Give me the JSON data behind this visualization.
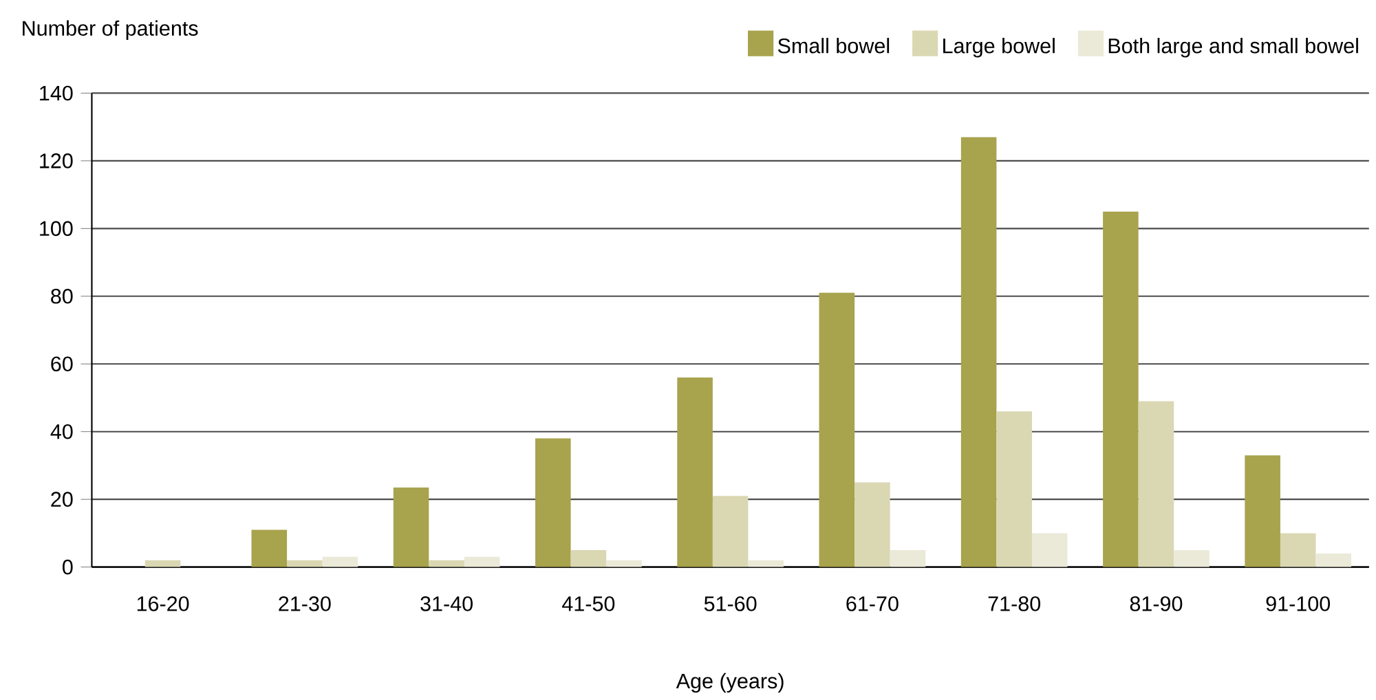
{
  "chart_data": {
    "type": "bar",
    "xlabel": "Age (years)",
    "ylabel": "Number of patients",
    "categories": [
      "16-20",
      "21-30",
      "31-40",
      "41-50",
      "51-60",
      "61-70",
      "71-80",
      "81-90",
      "91-100"
    ],
    "series": [
      {
        "name": "Small bowel",
        "color": "#a8a34d",
        "values": [
          0,
          11,
          23.5,
          38,
          56,
          81,
          127,
          105,
          33
        ]
      },
      {
        "name": "Large bowel",
        "color": "#dad7b3",
        "values": [
          2,
          2,
          2,
          5,
          21,
          25,
          46,
          49,
          10
        ]
      },
      {
        "name": "Both large and small bowel",
        "color": "#ebead9",
        "values": [
          0,
          3,
          3,
          2,
          2,
          5,
          10,
          5,
          4
        ]
      }
    ],
    "ylim": [
      0,
      140
    ],
    "yticks": [
      0,
      20,
      40,
      60,
      80,
      100,
      120,
      140
    ],
    "grid": "y",
    "legend": "top right"
  }
}
